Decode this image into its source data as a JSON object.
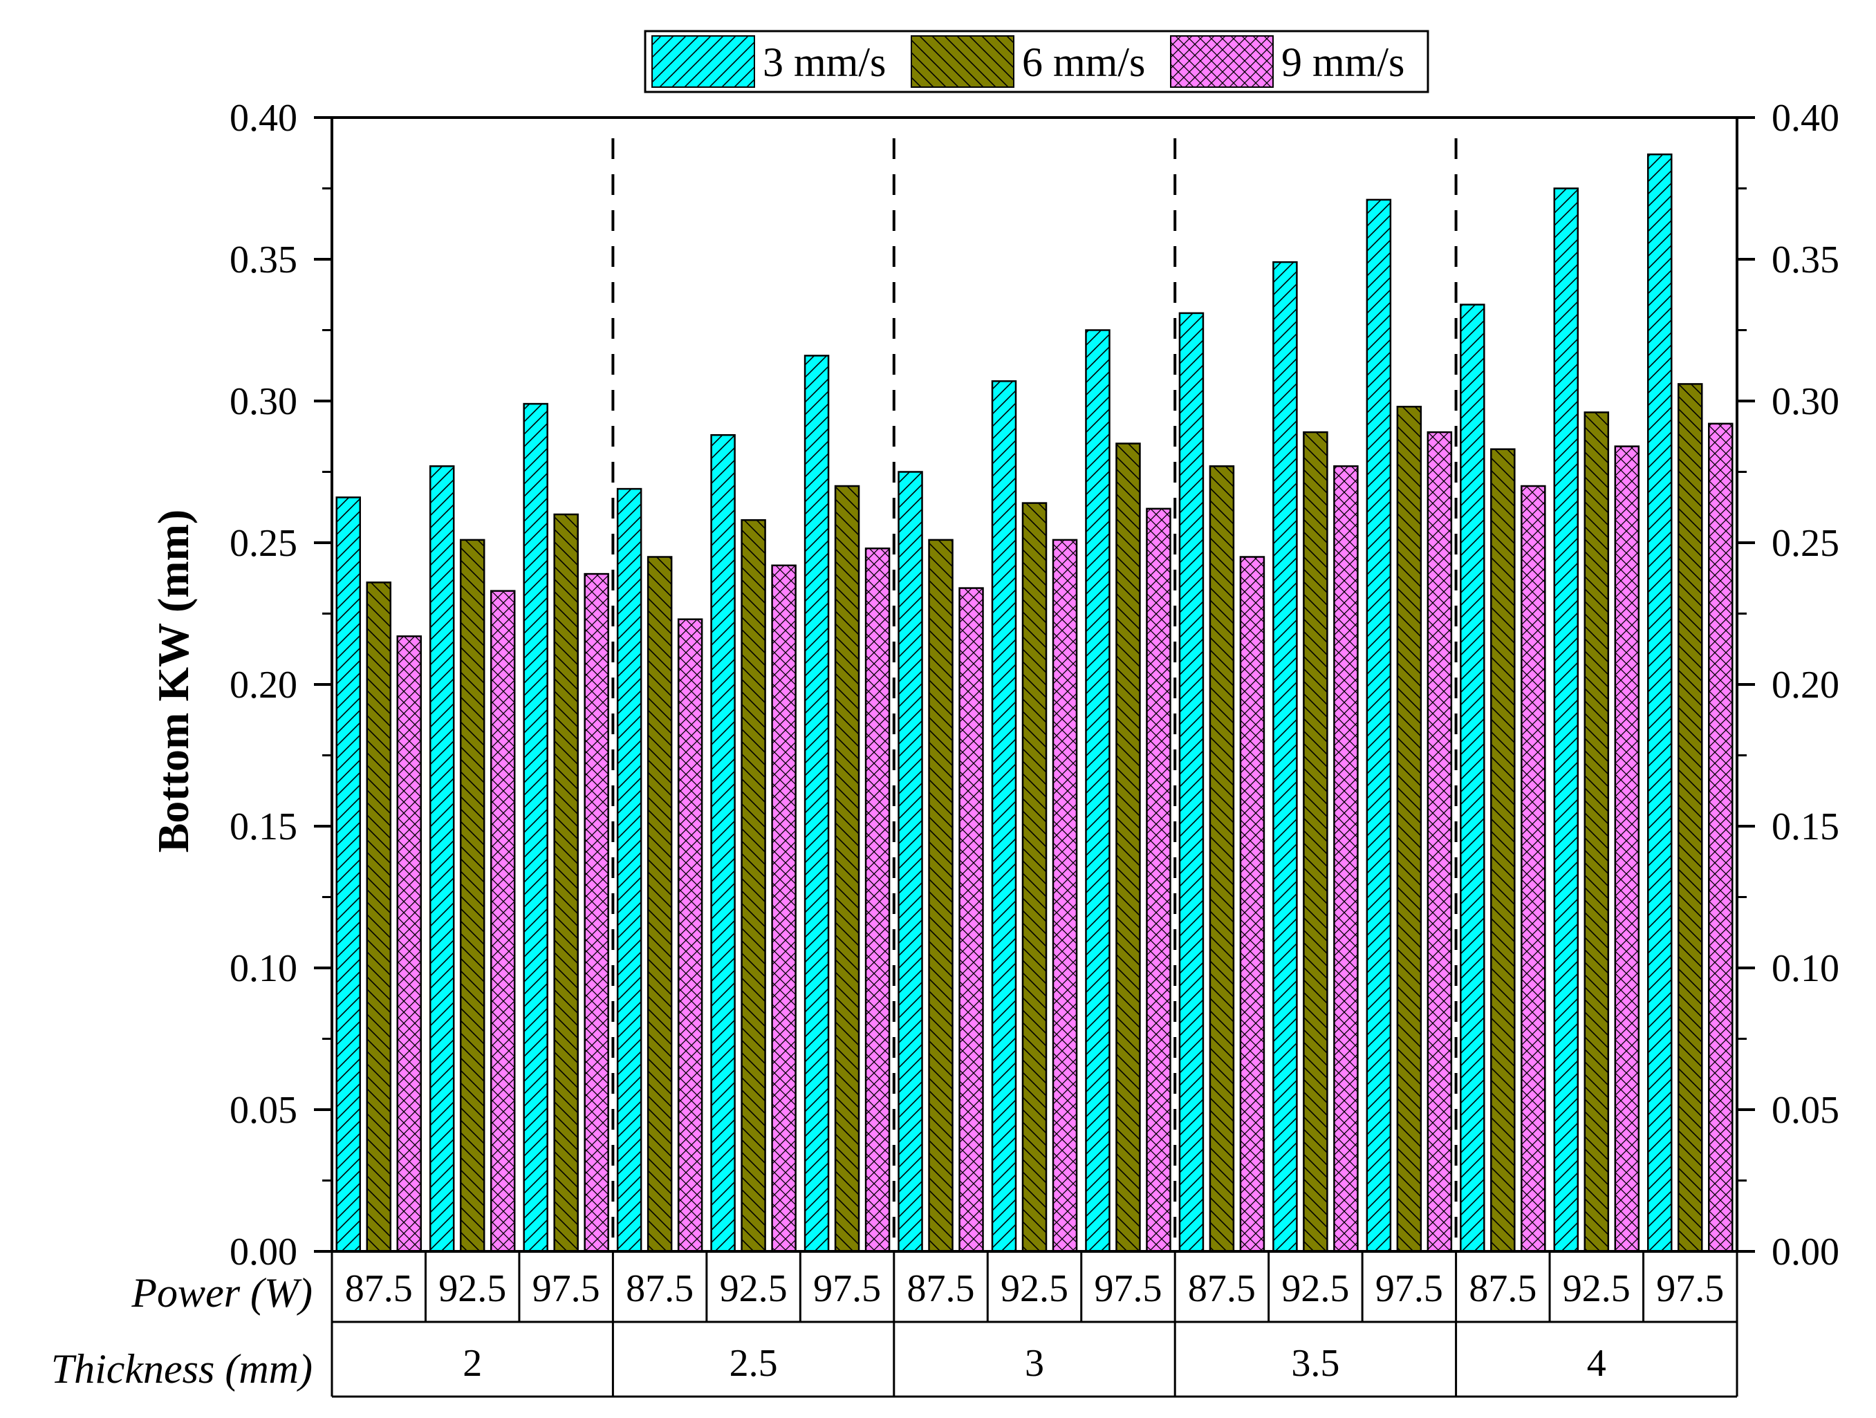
{
  "chart_data": {
    "type": "bar",
    "ylabel": "Bottom KW (mm)",
    "ylim": [
      0,
      0.4
    ],
    "yticks": [
      "0.00",
      "0.05",
      "0.10",
      "0.15",
      "0.20",
      "0.25",
      "0.30",
      "0.35",
      "0.40"
    ],
    "power_row_label": "Power (W)",
    "thickness_row_label": "Thickness (mm)",
    "power_levels": [
      "87.5",
      "92.5",
      "97.5"
    ],
    "thickness_levels": [
      "2",
      "2.5",
      "3",
      "3.5",
      "4"
    ],
    "series": [
      {
        "name": "3 mm/s",
        "color": "#00FFFF",
        "pattern": "forward-hatch",
        "values": [
          0.266,
          0.277,
          0.299,
          0.269,
          0.288,
          0.316,
          0.275,
          0.307,
          0.325,
          0.331,
          0.349,
          0.371,
          0.334,
          0.375,
          0.387
        ]
      },
      {
        "name": "6 mm/s",
        "color": "#7F7F00",
        "pattern": "back-hatch",
        "values": [
          0.236,
          0.251,
          0.26,
          0.245,
          0.258,
          0.27,
          0.251,
          0.264,
          0.285,
          0.277,
          0.289,
          0.298,
          0.283,
          0.296,
          0.306
        ]
      },
      {
        "name": "9 mm/s",
        "color": "#FF80FF",
        "pattern": "cross-hatch",
        "values": [
          0.217,
          0.233,
          0.239,
          0.223,
          0.242,
          0.248,
          0.234,
          0.251,
          0.262,
          0.245,
          0.277,
          0.289,
          0.27,
          0.284,
          0.292
        ]
      }
    ]
  }
}
